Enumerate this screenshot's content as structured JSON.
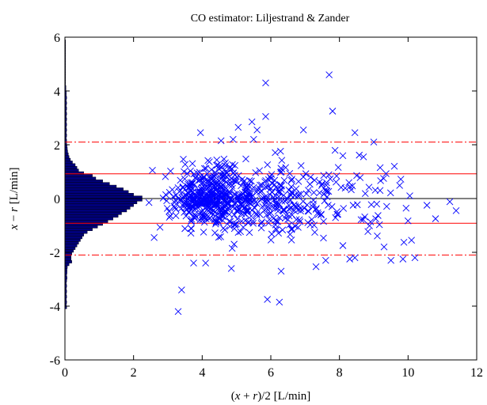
{
  "chart_data": {
    "type": "scatter",
    "title": "CO estimator: Liljestrand & Zander",
    "xlabel": "(x + r)/2 [L/min]",
    "ylabel": "x − r [L/min]",
    "xlim": [
      0,
      12
    ],
    "ylim": [
      -6,
      6
    ],
    "x_ticks": [
      "0",
      "2",
      "4",
      "6",
      "8",
      "10",
      "12"
    ],
    "y_ticks": [
      "-6",
      "-4",
      "-2",
      "0",
      "2",
      "4",
      "6"
    ],
    "marker": "x",
    "grid": false,
    "reference_lines": {
      "mean": 0.0,
      "one_sd": [
        0.92,
        -0.92
      ],
      "two_sd_dashdot": [
        2.1,
        -2.1
      ]
    },
    "histogram": {
      "orientation": "horizontal",
      "bin_centers": [
        -4.05,
        -3.95,
        -3.85,
        -3.75,
        -3.65,
        -3.55,
        -3.45,
        -3.35,
        -3.25,
        -3.15,
        -3.05,
        -2.95,
        -2.85,
        -2.75,
        -2.65,
        -2.55,
        -2.45,
        -2.35,
        -2.25,
        -2.15,
        -2.05,
        -1.95,
        -1.85,
        -1.75,
        -1.65,
        -1.55,
        -1.45,
        -1.35,
        -1.25,
        -1.15,
        -1.05,
        -0.95,
        -0.85,
        -0.75,
        -0.65,
        -0.55,
        -0.45,
        -0.35,
        -0.25,
        -0.15,
        -0.05,
        0.05,
        0.15,
        0.25,
        0.35,
        0.45,
        0.55,
        0.65,
        0.75,
        0.85,
        0.95,
        1.05,
        1.15,
        1.25,
        1.35,
        1.45,
        1.55,
        1.65,
        1.75,
        1.85,
        1.95,
        2.05,
        2.15,
        2.25,
        2.35,
        2.45,
        2.55,
        2.65,
        2.75,
        2.85,
        2.95,
        3.05,
        3.15,
        3.25,
        3.35,
        3.45,
        3.55,
        3.65,
        3.75,
        3.85,
        3.95,
        4.05,
        4.15,
        4.25,
        4.35,
        4.45,
        4.55,
        4.65,
        4.75,
        4.85,
        4.95,
        5.05,
        5.15,
        5.25,
        5.35,
        5.45,
        5.55,
        5.65,
        5.75,
        5.85
      ],
      "values": [
        0.05,
        0.04,
        0.05,
        0.04,
        0.05,
        0.04,
        0.05,
        0.04,
        0.05,
        0.04,
        0.05,
        0.06,
        0.05,
        0.06,
        0.06,
        0.07,
        0.12,
        0.2,
        0.18,
        0.18,
        0.2,
        0.25,
        0.3,
        0.35,
        0.4,
        0.45,
        0.5,
        0.55,
        0.65,
        0.8,
        0.95,
        1.1,
        1.25,
        1.4,
        1.55,
        1.65,
        1.8,
        1.9,
        2.0,
        2.1,
        2.25,
        2.25,
        2.0,
        1.85,
        1.7,
        1.5,
        1.3,
        1.1,
        0.9,
        0.8,
        0.55,
        0.4,
        0.35,
        0.3,
        0.22,
        0.16,
        0.12,
        0.1,
        0.08,
        0.07,
        0.06,
        0.05,
        0.05,
        0.04,
        0.05,
        0.04,
        0.05,
        0.04,
        0.05,
        0.04,
        0.05,
        0.04,
        0.05,
        0.04,
        0.05,
        0.04,
        0.05,
        0.04,
        0.05,
        0.04,
        0.04,
        0.03,
        0.03,
        0.02,
        0.02,
        0.02,
        0.02,
        0.02,
        0.02,
        0.02,
        0.02,
        0.02,
        0.02,
        0.02,
        0.02,
        0.02,
        0.02,
        0.02,
        0.02,
        0.02
      ]
    },
    "points_outliers": [
      [
        5.85,
        4.3
      ],
      [
        7.7,
        4.6
      ],
      [
        7.8,
        3.25
      ],
      [
        5.45,
        2.85
      ],
      [
        5.05,
        2.65
      ],
      [
        5.85,
        3.05
      ],
      [
        3.3,
        -4.2
      ],
      [
        3.4,
        -3.4
      ],
      [
        5.9,
        -3.75
      ],
      [
        6.25,
        -3.85
      ],
      [
        6.3,
        -2.7
      ],
      [
        3.75,
        -2.4
      ],
      [
        4.1,
        -2.4
      ],
      [
        4.85,
        -2.6
      ],
      [
        8.45,
        -2.2
      ],
      [
        9.85,
        -2.25
      ],
      [
        10.2,
        -2.2
      ],
      [
        10.8,
        -0.75
      ],
      [
        11.4,
        -0.45
      ],
      [
        10.55,
        -0.25
      ],
      [
        10.05,
        0.1
      ],
      [
        9.6,
        1.2
      ],
      [
        9.0,
        2.1
      ],
      [
        8.45,
        2.45
      ],
      [
        6.95,
        2.55
      ],
      [
        4.9,
        2.2
      ],
      [
        3.95,
        2.45
      ],
      [
        2.55,
        1.05
      ],
      [
        2.45,
        -0.15
      ],
      [
        2.6,
        -1.45
      ],
      [
        5.5,
        2.2
      ],
      [
        8.7,
        1.55
      ],
      [
        8.3,
        -2.25
      ],
      [
        9.5,
        -2.3
      ],
      [
        7.6,
        -2.3
      ],
      [
        4.55,
        2.15
      ],
      [
        5.6,
        2.55
      ],
      [
        8.1,
        -1.75
      ],
      [
        10.1,
        -1.55
      ],
      [
        9.3,
        -1.8
      ]
    ],
    "cluster": {
      "point_count": 760,
      "seed": 7
    }
  }
}
